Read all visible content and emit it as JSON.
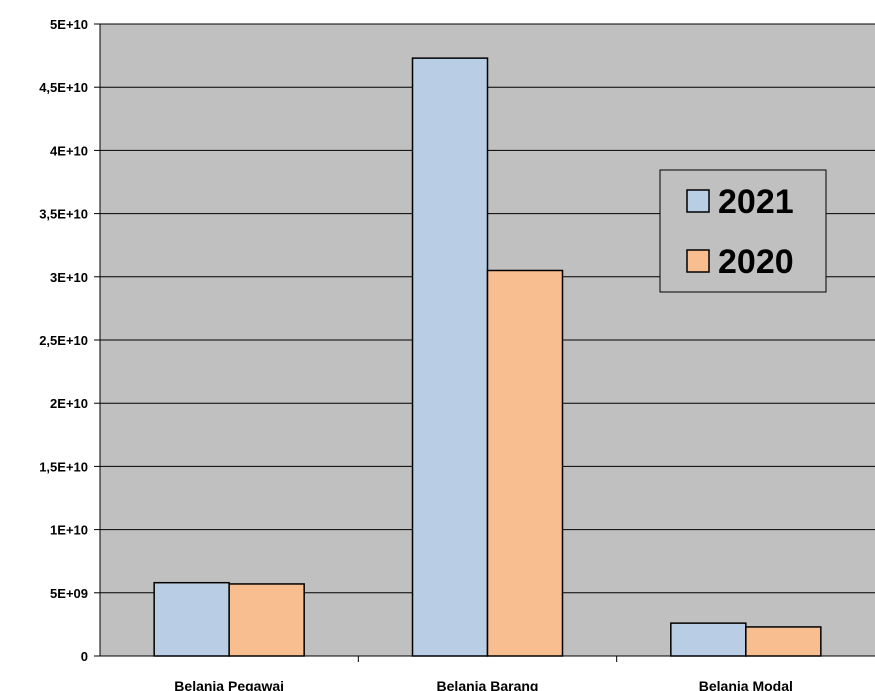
{
  "chart_data": {
    "type": "bar",
    "categories": [
      "Belanja Pegawai",
      "Belanja Barang",
      "Belanja Modal"
    ],
    "series": [
      {
        "name": "2021",
        "values": [
          5800000000,
          47300000000,
          2600000000
        ],
        "color": "#b9cde5"
      },
      {
        "name": "2020",
        "values": [
          5700000000,
          30500000000,
          2300000000
        ],
        "color": "#f9be8f"
      }
    ],
    "yticks": [
      "0",
      "5E+09",
      "1E+10",
      "1,5E+10",
      "2E+10",
      "2,5E+10",
      "3E+10",
      "3,5E+10",
      "4E+10",
      "4,5E+10",
      "5E+10"
    ],
    "ylim": [
      0,
      50000000000
    ],
    "grid": true,
    "legend_position": "right",
    "plot_background": "#c0c0c0"
  }
}
